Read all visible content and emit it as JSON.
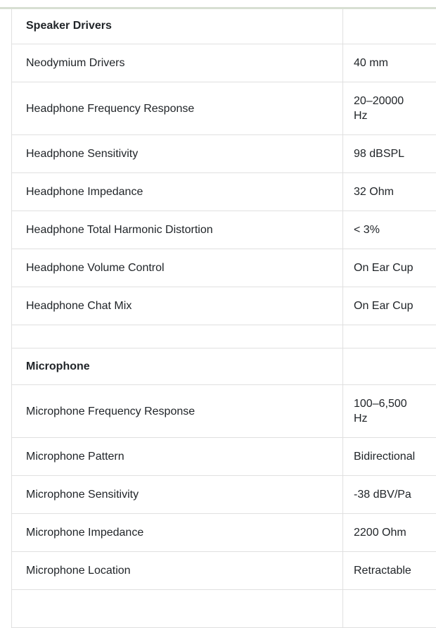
{
  "colors": {
    "accent_strip": "#d7dfd2",
    "table_border": "#e0e0e0",
    "text": "#212529",
    "background": "#ffffff"
  },
  "spec_table": {
    "rows": [
      {
        "type": "section",
        "label": "Speaker Drivers",
        "value": ""
      },
      {
        "type": "row",
        "label": "Neodymium Drivers",
        "value": "40 mm"
      },
      {
        "type": "row",
        "label": "Headphone Frequency Response",
        "value": "20–20000 Hz"
      },
      {
        "type": "row",
        "label": "Headphone Sensitivity",
        "value": "98 dBSPL"
      },
      {
        "type": "row",
        "label": "Headphone Impedance",
        "value": "32 Ohm"
      },
      {
        "type": "row",
        "label": "Headphone Total Harmonic Distortion",
        "value": "< 3%"
      },
      {
        "type": "row",
        "label": "Headphone Volume Control",
        "value": "On Ear Cup"
      },
      {
        "type": "row",
        "label": "Headphone Chat Mix",
        "value": "On Ear Cup"
      },
      {
        "type": "spacer",
        "label": "",
        "value": ""
      },
      {
        "type": "section",
        "label": "Microphone",
        "value": ""
      },
      {
        "type": "row",
        "label": "Microphone Frequency Response",
        "value": "100–6,500 Hz"
      },
      {
        "type": "row",
        "label": "Microphone Pattern",
        "value": "Bidirectional"
      },
      {
        "type": "row",
        "label": "Microphone Sensitivity",
        "value": "-38 dBV/Pa"
      },
      {
        "type": "row",
        "label": "Microphone Impedance",
        "value": "2200 Ohm"
      },
      {
        "type": "row",
        "label": "Microphone Location",
        "value": "Retractable"
      }
    ]
  }
}
